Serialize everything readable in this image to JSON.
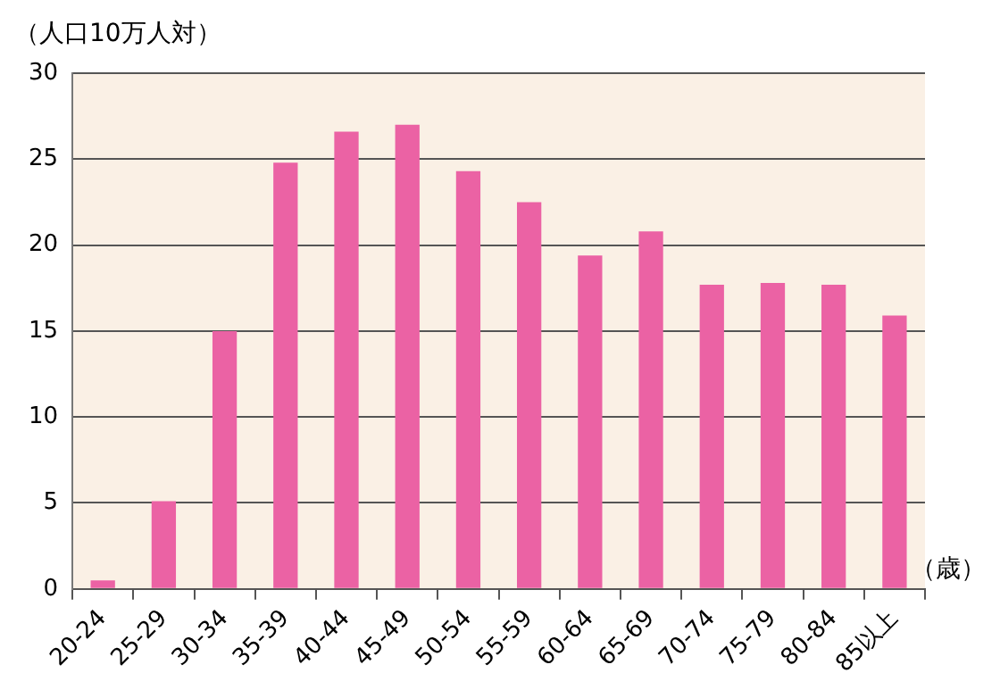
{
  "chart_data": {
    "type": "bar",
    "ylabel": "（人口10万人対）",
    "xlabel": "（歳）",
    "categories": [
      "20-24",
      "25-29",
      "30-34",
      "35-39",
      "40-44",
      "45-49",
      "50-54",
      "55-59",
      "60-64",
      "65-69",
      "70-74",
      "75-79",
      "80-84",
      "85以上"
    ],
    "values": [
      0.5,
      5.1,
      15.0,
      24.8,
      26.6,
      27.0,
      24.3,
      22.5,
      19.4,
      20.8,
      17.7,
      17.8,
      17.7,
      15.9
    ],
    "color": "#eb62a4",
    "ylim": [
      0,
      30
    ],
    "yticks": [
      0,
      5,
      10,
      15,
      20,
      25,
      30
    ],
    "grid": "y"
  }
}
